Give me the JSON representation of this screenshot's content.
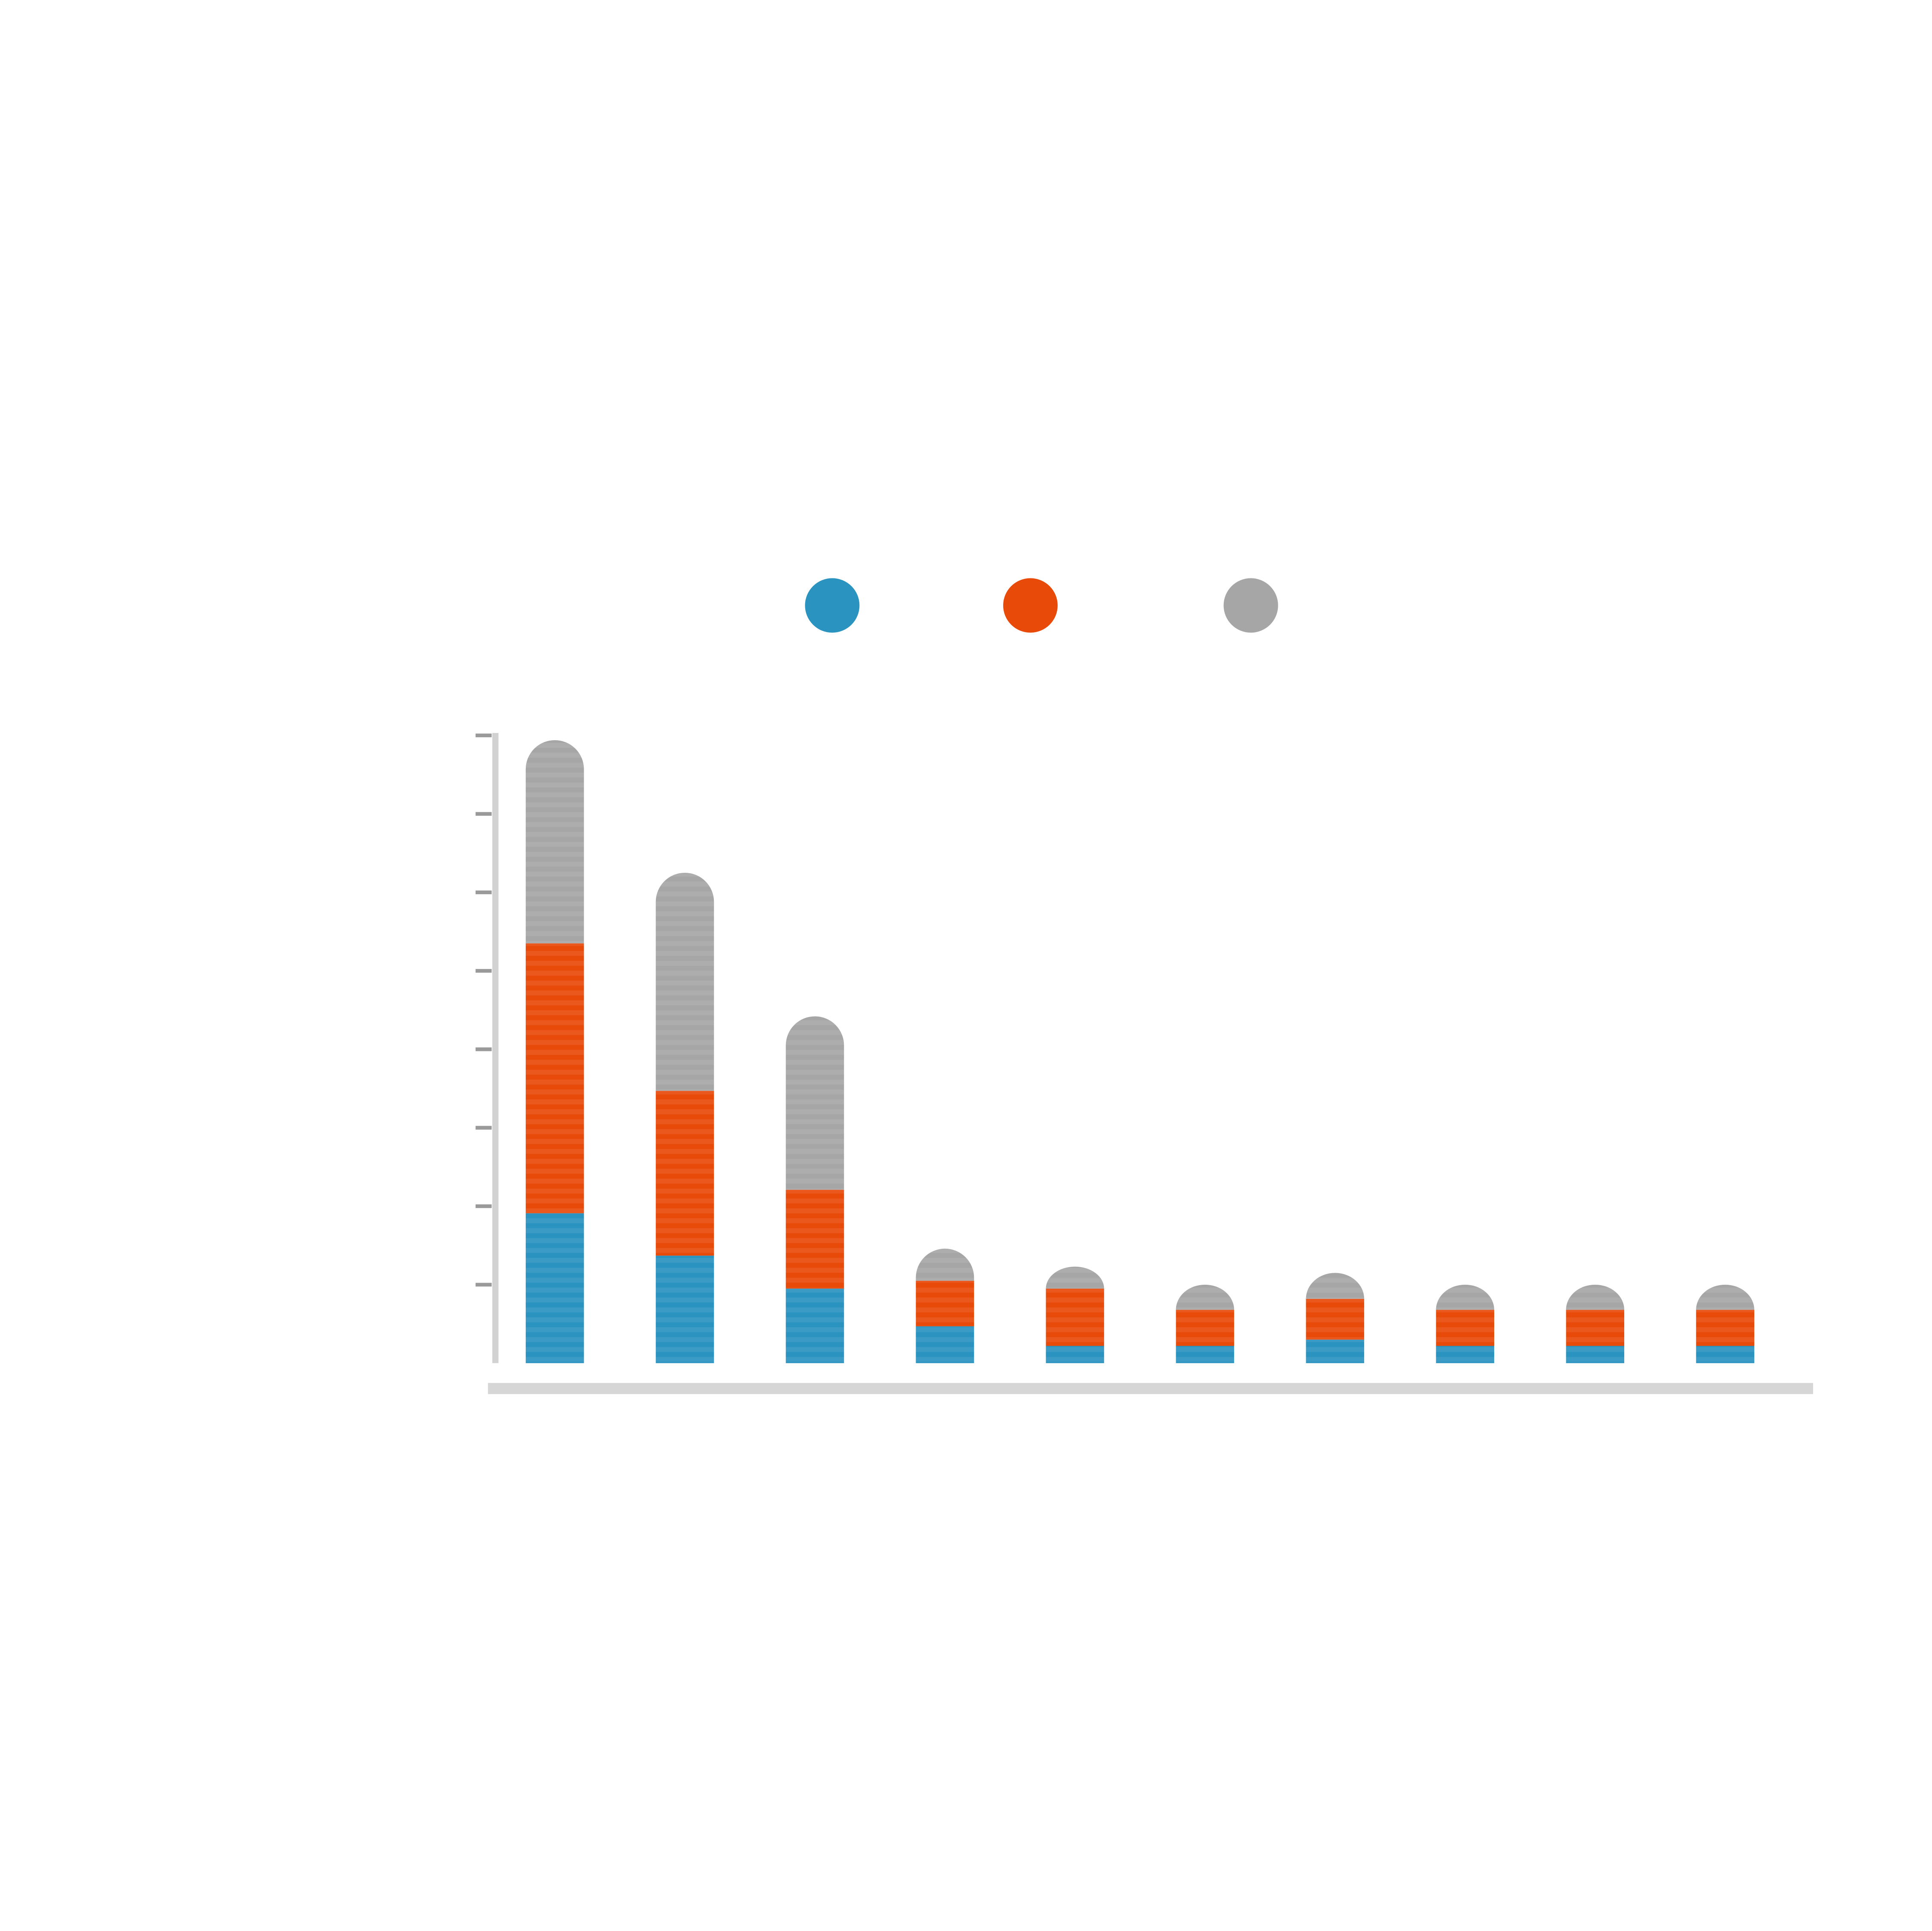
{
  "chart_data": {
    "type": "stacked-bar",
    "categories": [
      null,
      null,
      null,
      null,
      null,
      null,
      null,
      null,
      null,
      null
    ],
    "series": [
      {
        "color": "#2a93c0",
        "values": [
          1.91,
          1.37,
          0.95,
          0.47,
          0.22,
          0.22,
          0.3,
          0.22,
          0.22,
          0.22
        ]
      },
      {
        "color": "#e84a0a",
        "values": [
          3.44,
          2.1,
          1.26,
          0.58,
          0.73,
          0.46,
          0.52,
          0.46,
          0.46,
          0.46
        ]
      },
      {
        "color": "#a6a6a6",
        "values": [
          2.59,
          2.78,
          2.21,
          0.41,
          0.28,
          0.32,
          0.33,
          0.32,
          0.32,
          0.32
        ]
      }
    ],
    "ylim": [
      0,
      8
    ],
    "yticks": [
      1,
      2,
      3,
      4,
      5,
      6,
      7,
      8
    ],
    "rounded_top": true
  }
}
